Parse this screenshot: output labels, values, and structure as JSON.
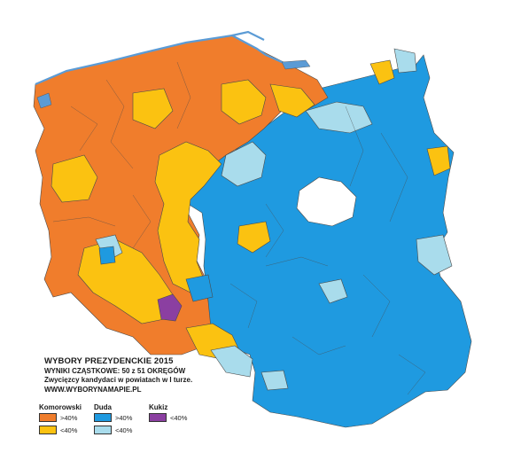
{
  "map": {
    "title": "WYBORY PREZYDENCKIE 2015",
    "subtitle": "WYNIKI CZĄSTKOWE: 50 z 51 OKRĘGÓW",
    "description": "Zwycięzcy kandydaci w powiatach w I turze.",
    "source": "WWW.WYBORYNAMAPIE.PL"
  },
  "legend": {
    "candidates": [
      {
        "name": "Komorowski",
        "items": [
          {
            "label": ">40%",
            "color": "#f07d2c"
          },
          {
            "label": "<40%",
            "color": "#fbc211"
          }
        ]
      },
      {
        "name": "Duda",
        "items": [
          {
            "label": ">40%",
            "color": "#1f9ae0"
          },
          {
            "label": "<40%",
            "color": "#a9dcec"
          }
        ]
      },
      {
        "name": "Kukiz",
        "items": [
          {
            "label": "<40%",
            "color": "#8b3fa1"
          }
        ]
      }
    ]
  },
  "colors": {
    "komorowski_high": "#f07d2c",
    "komorowski_low": "#fbc211",
    "duda_high": "#1f9ae0",
    "duda_low": "#a9dcec",
    "kukiz_low": "#8b3fa1",
    "no_data": "#ffffff",
    "coastline": "#5b9bd5"
  }
}
